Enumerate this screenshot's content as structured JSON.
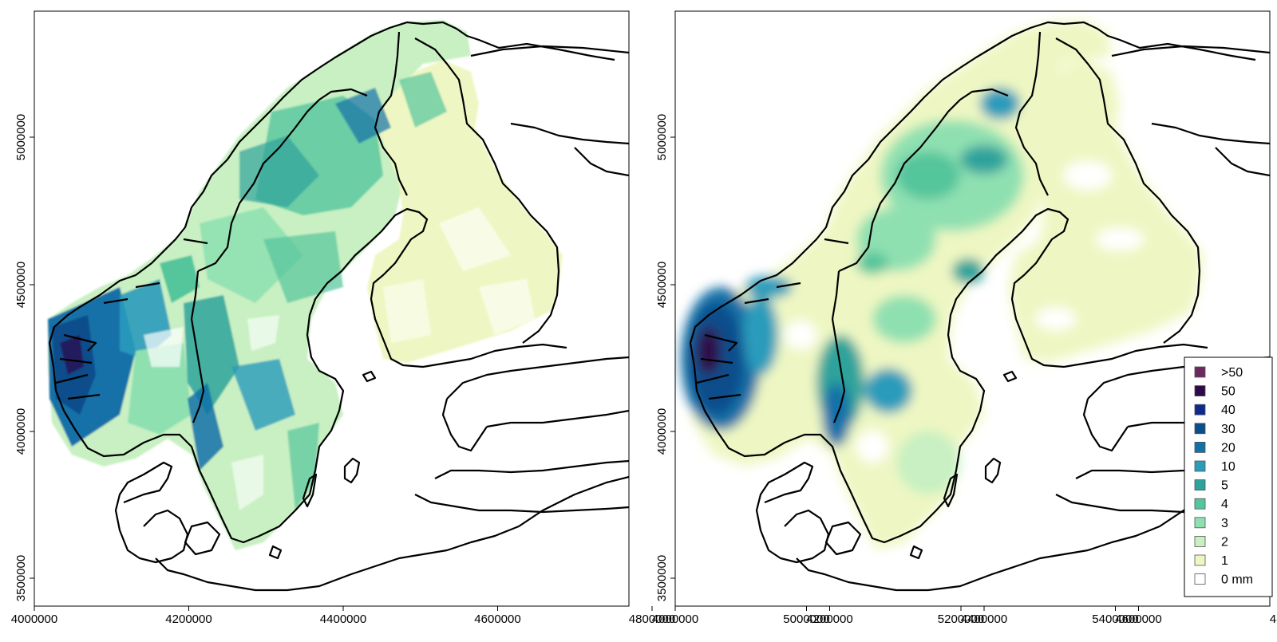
{
  "x_ticks": [
    "4000000",
    "4200000",
    "4400000",
    "4600000",
    "4800000",
    "5000000",
    "5200000",
    "5400000"
  ],
  "y_ticks": [
    "5000000",
    "4500000",
    "4000000",
    "3500000"
  ],
  "legend": {
    "items": [
      {
        "label": ">50",
        "color": "#6b2a5e"
      },
      {
        "label": "50",
        "color": "#2e0a4a"
      },
      {
        "label": "40",
        "color": "#0e2a8a"
      },
      {
        "label": "30",
        "color": "#0b4e8c"
      },
      {
        "label": "20",
        "color": "#1271a8"
      },
      {
        "label": "10",
        "color": "#2b9bbb"
      },
      {
        "label": "5",
        "color": "#2da39b"
      },
      {
        "label": "4",
        "color": "#55c59c"
      },
      {
        "label": "3",
        "color": "#8fe0b1"
      },
      {
        "label": "2",
        "color": "#c8f0c2"
      },
      {
        "label": "1",
        "color": "#eef7c3"
      },
      {
        "label": "0 mm",
        "color": "#ffffff"
      }
    ]
  }
}
